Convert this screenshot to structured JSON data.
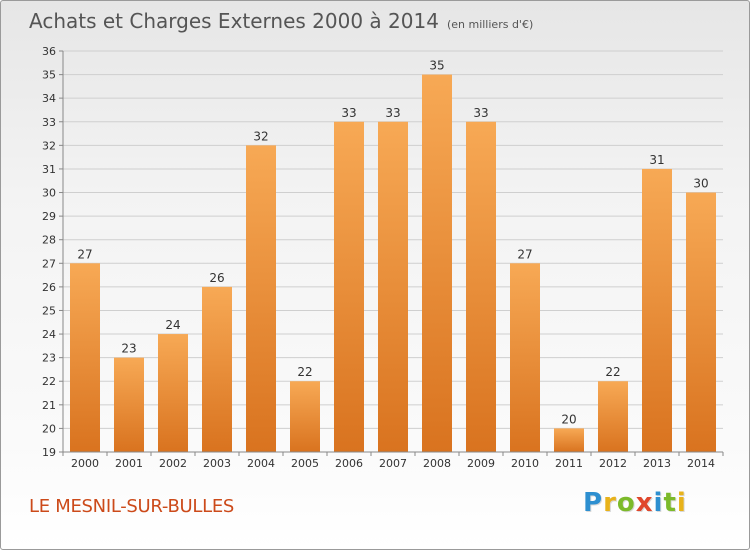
{
  "header": {
    "title": "Achats et Charges Externes 2000 à 2014",
    "unit": "(en milliers d'€)"
  },
  "footer": {
    "town": "LE MESNIL-SUR-BULLES",
    "logo": {
      "letters": [
        "P",
        "r",
        "o",
        "x",
        "i",
        "t",
        "i"
      ],
      "colors": [
        "#2d8fd0",
        "#e8b21a",
        "#7cba2a",
        "#e0472c",
        "#2d8fd0",
        "#7cba2a",
        "#e8b21a"
      ]
    }
  },
  "colors": {
    "bar_light": "#f7a955",
    "bar_dark": "#d9731f",
    "grid": "#cfcfcf",
    "axis": "#888888",
    "text": "#333333"
  },
  "chart_data": {
    "type": "bar",
    "categories": [
      "2000",
      "2001",
      "2002",
      "2003",
      "2004",
      "2005",
      "2006",
      "2007",
      "2008",
      "2009",
      "2010",
      "2011",
      "2012",
      "2013",
      "2014"
    ],
    "values": [
      27,
      23,
      24,
      26,
      32,
      22,
      33,
      33,
      35,
      33,
      27,
      20,
      22,
      31,
      30
    ],
    "title": "Achats et Charges Externes 2000 à 2014",
    "xlabel": "",
    "ylabel": "",
    "ylim": [
      19,
      36
    ],
    "yticks": [
      19,
      20,
      21,
      22,
      23,
      24,
      25,
      26,
      27,
      28,
      29,
      30,
      31,
      32,
      33,
      34,
      35,
      36
    ],
    "grid": true,
    "data_labels": true
  }
}
